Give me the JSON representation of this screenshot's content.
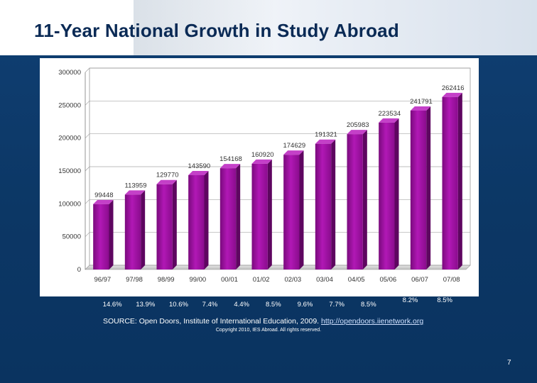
{
  "title": "11-Year National Growth in Study Abroad",
  "chart_data": {
    "type": "bar",
    "title": "",
    "xlabel": "",
    "ylabel": "",
    "categories": [
      "96/97",
      "97/98",
      "98/99",
      "99/00",
      "00/01",
      "01/02",
      "02/03",
      "03/04",
      "04/05",
      "05/06",
      "06/07",
      "07/08"
    ],
    "values": [
      99448,
      113959,
      129770,
      143590,
      154168,
      160920,
      174629,
      191321,
      205983,
      223534,
      241791,
      262416
    ],
    "value_labels": [
      "99448",
      "113959",
      "129770",
      "143590",
      "154168",
      "160920",
      "174629",
      "191321",
      "205983",
      "223534",
      "241791",
      "262416"
    ],
    "ylim": [
      0,
      300000
    ],
    "yticks": [
      "0",
      "50000",
      "100000",
      "150000",
      "200000",
      "250000",
      "300000"
    ],
    "grid": true,
    "bar_color": "#9b0f9e",
    "growth_rates": [
      "14.6%",
      "13.9%",
      "10.6%",
      "7.4%",
      "4.4%",
      "8.5%",
      "9.6%",
      "7.7%",
      "8.5%",
      "8.2%",
      "8.5%"
    ]
  },
  "source": {
    "text": "SOURCE: Open Doors, Institute of International Education, 2009.",
    "link": "http://opendoors.iienetwork.org"
  },
  "copyright": "Copyright 2010, IES Abroad.  All rights reserved.",
  "page_number": "7"
}
